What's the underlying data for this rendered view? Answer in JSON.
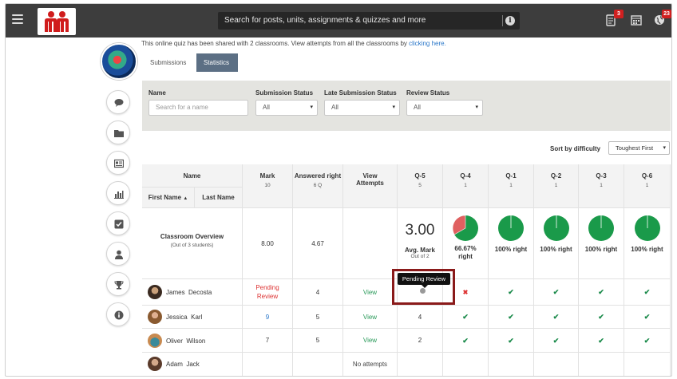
{
  "topbar": {
    "search_placeholder": "Search for posts, units, assignments & quizzes and more",
    "notifications_badge": "3",
    "updates_badge": "23"
  },
  "header": {
    "shared_note": "This online quiz has been shared with 2 classrooms. View attempts from all the classrooms by",
    "shared_link": "clicking here.",
    "tabs": [
      "Submissions",
      "Statistics"
    ],
    "active_tab": "Statistics"
  },
  "filters": {
    "name_label": "Name",
    "name_placeholder": "Search for a name",
    "submission_status_label": "Submission Status",
    "submission_status_value": "All",
    "late_submission_label": "Late Submission Status",
    "late_submission_value": "All",
    "review_status_label": "Review Status",
    "review_status_value": "All"
  },
  "sort": {
    "label": "Sort by difficulty",
    "value": "Toughest First"
  },
  "table": {
    "headers": {
      "name": "Name",
      "first_name": "First Name",
      "last_name": "Last Name",
      "mark": "Mark",
      "mark_sub": "10",
      "answered": "Answered right",
      "answered_sub": "6 Q",
      "view_attempts": "View Attempts",
      "q5": "Q-5",
      "q5_sub": "5",
      "q4": "Q-4",
      "q4_sub": "1",
      "q1": "Q-1",
      "q1_sub": "1",
      "q2": "Q-2",
      "q2_sub": "1",
      "q3": "Q-3",
      "q3_sub": "1",
      "q6": "Q-6",
      "q6_sub": "1"
    },
    "overview": {
      "title": "Classroom Overview",
      "subtitle": "(Out of 3 students)",
      "mark": "8.00",
      "answered": "4.67",
      "avg_value": "3.00",
      "avg_label": "Avg. Mark",
      "avg_sub": "Out of 2",
      "q4_pct": "66.67%",
      "q4_right": "right",
      "q4_fraction": 0.6667,
      "q_right_label": "100% right"
    },
    "students": [
      {
        "first": "James",
        "last": "Decosta",
        "mark": "Pending Review",
        "answered": "4",
        "view": "View",
        "q5": "",
        "q4": "x",
        "q1": "check",
        "q2": "check",
        "q3": "check",
        "q6": "check"
      },
      {
        "first": "Jessica",
        "last": "Karl",
        "mark": "9",
        "answered": "5",
        "view": "View",
        "q5": "4",
        "q4": "check",
        "q1": "check",
        "q2": "check",
        "q3": "check",
        "q6": "check"
      },
      {
        "first": "Oliver",
        "last": "Wilson",
        "mark": "7",
        "answered": "5",
        "view": "View",
        "q5": "2",
        "q4": "check",
        "q1": "check",
        "q2": "check",
        "q3": "check",
        "q6": "check"
      },
      {
        "first": "Adam",
        "last": "Jack",
        "mark": "",
        "answered": "",
        "view": "No attempts",
        "q5": "",
        "q4": "",
        "q1": "",
        "q2": "",
        "q3": "",
        "q6": ""
      }
    ]
  },
  "tooltip": "Pending Review",
  "colors": {
    "pie_green": "#1a9a4a",
    "pie_red": "#e06060",
    "topbar": "#3d3d3d",
    "accent_tab": "#5c6f84"
  }
}
